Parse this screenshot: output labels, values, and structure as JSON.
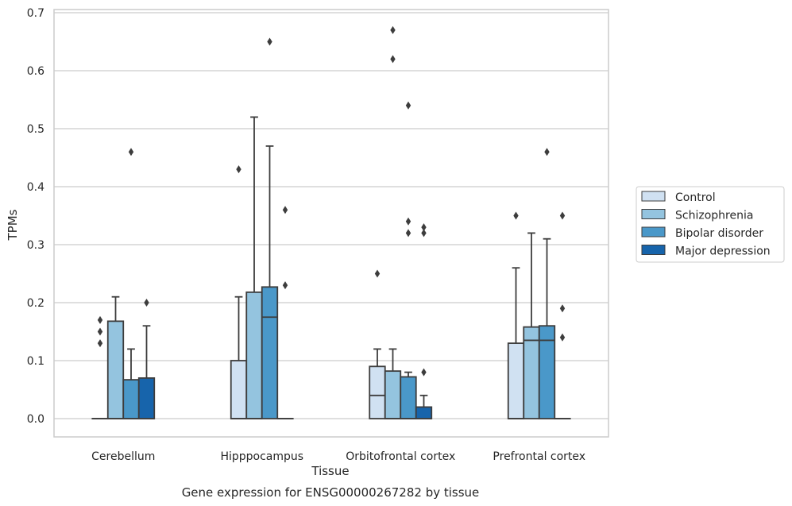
{
  "caption": "Gene expression for ENSG00000267282 by tissue",
  "chart_data": {
    "type": "box",
    "title": "",
    "xlabel": "Tissue",
    "ylabel": "TPMs",
    "ylim": [
      -0.03,
      0.705
    ],
    "yticks": [
      "0.0",
      "0.1",
      "0.2",
      "0.3",
      "0.4",
      "0.5",
      "0.6",
      "0.7"
    ],
    "grid": true,
    "legend_position": "right",
    "categories": [
      "Cerebellum",
      "Hipppocampus",
      "Orbitofrontal cortex",
      "Prefrontal cortex"
    ],
    "series": [
      {
        "name": "Control",
        "color": "#d0e1f2",
        "boxes": [
          {
            "q1": 0,
            "median": 0,
            "q3": 0,
            "whislo": 0,
            "whishi": 0,
            "fliers": [
              0.13,
              0.15,
              0.17
            ]
          },
          {
            "q1": 0,
            "median": 0,
            "q3": 0.1,
            "whislo": 0,
            "whishi": 0.21,
            "fliers": [
              0.43
            ]
          },
          {
            "q1": 0,
            "median": 0.04,
            "q3": 0.09,
            "whislo": 0,
            "whishi": 0.12,
            "fliers": [
              0.25
            ]
          },
          {
            "q1": 0,
            "median": 0,
            "q3": 0.13,
            "whislo": 0,
            "whishi": 0.26,
            "fliers": [
              0.35
            ]
          }
        ]
      },
      {
        "name": "Schizophrenia",
        "color": "#94c4df",
        "boxes": [
          {
            "q1": 0,
            "median": 0,
            "q3": 0.168,
            "whislo": 0,
            "whishi": 0.21,
            "fliers": []
          },
          {
            "q1": 0,
            "median": 0,
            "q3": 0.218,
            "whislo": 0,
            "whishi": 0.52,
            "fliers": []
          },
          {
            "q1": 0,
            "median": 0,
            "q3": 0.082,
            "whislo": 0,
            "whishi": 0.12,
            "fliers": [
              0.62,
              0.67
            ]
          },
          {
            "q1": 0,
            "median": 0.135,
            "q3": 0.158,
            "whislo": 0,
            "whishi": 0.32,
            "fliers": []
          }
        ]
      },
      {
        "name": "Bipolar disorder",
        "color": "#4a98c9",
        "boxes": [
          {
            "q1": 0,
            "median": 0,
            "q3": 0.067,
            "whislo": 0,
            "whishi": 0.12,
            "fliers": [
              0.46
            ]
          },
          {
            "q1": 0,
            "median": 0.175,
            "q3": 0.227,
            "whislo": 0,
            "whishi": 0.47,
            "fliers": [
              0.65
            ]
          },
          {
            "q1": 0,
            "median": 0,
            "q3": 0.072,
            "whislo": 0,
            "whishi": 0.08,
            "fliers": [
              0.32,
              0.34,
              0.54
            ]
          },
          {
            "q1": 0,
            "median": 0.135,
            "q3": 0.16,
            "whislo": 0,
            "whishi": 0.31,
            "fliers": [
              0.46
            ]
          }
        ]
      },
      {
        "name": "Major depression",
        "color": "#1764ab",
        "boxes": [
          {
            "q1": 0,
            "median": 0,
            "q3": 0.07,
            "whislo": 0,
            "whishi": 0.16,
            "fliers": [
              0.2
            ]
          },
          {
            "q1": 0,
            "median": 0,
            "q3": 0,
            "whislo": 0,
            "whishi": 0,
            "fliers": [
              0.23,
              0.36
            ]
          },
          {
            "q1": 0,
            "median": 0,
            "q3": 0.02,
            "whislo": 0,
            "whishi": 0.04,
            "fliers": [
              0.08,
              0.32,
              0.33
            ]
          },
          {
            "q1": 0,
            "median": 0,
            "q3": 0,
            "whislo": 0,
            "whishi": 0,
            "fliers": [
              0.14,
              0.19,
              0.35
            ]
          }
        ]
      }
    ]
  }
}
